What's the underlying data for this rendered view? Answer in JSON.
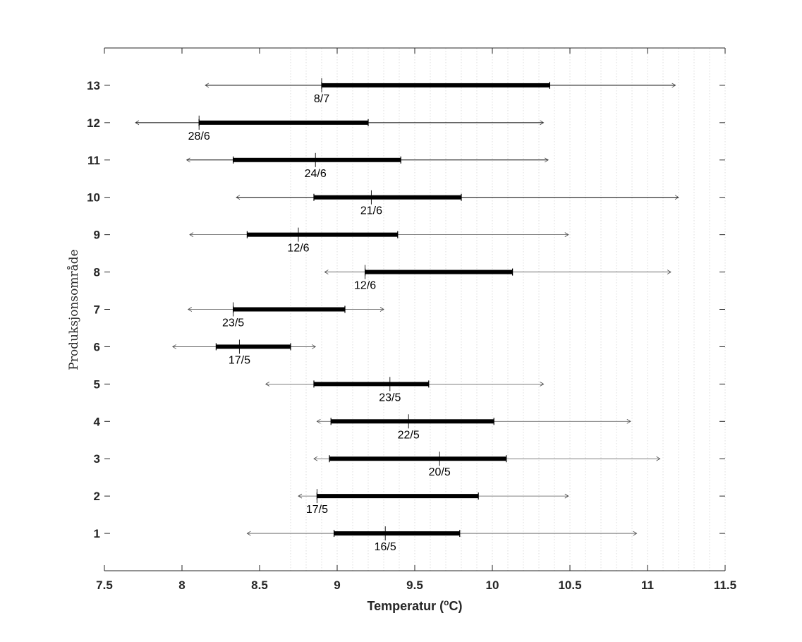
{
  "chart_data": {
    "type": "range",
    "xlabel": "Temperatur (",
    "xlabel_sup": "o",
    "xlabel_end": "C)",
    "ylabel": "Produksjonsområde",
    "xlim": [
      7.5,
      11.5
    ],
    "ylim": [
      0,
      14
    ],
    "xticks": [
      "7.5",
      "8",
      "8.5",
      "9",
      "9.5",
      "10",
      "10.5",
      "11",
      "11.5"
    ],
    "grid": "vertical dotted, minor, from 8.7 to 11.5",
    "series": [
      {
        "area": 13,
        "min": 8.15,
        "max": 11.18,
        "q_low": 8.9,
        "q_high": 10.37,
        "mark": 8.9,
        "date": "8/7"
      },
      {
        "area": 12,
        "min": 7.7,
        "max": 10.33,
        "q_low": 8.11,
        "q_high": 9.2,
        "mark": 8.11,
        "date": "28/6"
      },
      {
        "area": 11,
        "min": 8.03,
        "max": 10.36,
        "q_low": 8.33,
        "q_high": 9.41,
        "mark": 8.86,
        "date": "24/6"
      },
      {
        "area": 10,
        "min": 8.35,
        "max": 11.2,
        "q_low": 8.85,
        "q_high": 9.8,
        "mark": 9.22,
        "date": "21/6"
      },
      {
        "area": 9,
        "min": 8.05,
        "max": 10.49,
        "q_low": 8.42,
        "q_high": 9.39,
        "mark": 8.75,
        "date": "12/6"
      },
      {
        "area": 8,
        "min": 8.92,
        "max": 11.15,
        "q_low": 9.18,
        "q_high": 10.13,
        "mark": 9.18,
        "date": "12/6"
      },
      {
        "area": 7,
        "min": 8.04,
        "max": 9.3,
        "q_low": 8.33,
        "q_high": 9.05,
        "mark": 8.33,
        "date": "23/5"
      },
      {
        "area": 6,
        "min": 7.94,
        "max": 8.86,
        "q_low": 8.22,
        "q_high": 8.7,
        "mark": 8.37,
        "date": "17/5"
      },
      {
        "area": 5,
        "min": 8.54,
        "max": 10.33,
        "q_low": 8.85,
        "q_high": 9.59,
        "mark": 9.34,
        "date": "23/5"
      },
      {
        "area": 4,
        "min": 8.87,
        "max": 10.89,
        "q_low": 8.96,
        "q_high": 10.01,
        "mark": 9.46,
        "date": "22/5"
      },
      {
        "area": 3,
        "min": 8.85,
        "max": 11.08,
        "q_low": 8.95,
        "q_high": 10.09,
        "mark": 9.66,
        "date": "20/5"
      },
      {
        "area": 2,
        "min": 8.75,
        "max": 10.49,
        "q_low": 8.87,
        "q_high": 9.91,
        "mark": 8.87,
        "date": "17/5"
      },
      {
        "area": 1,
        "min": 8.42,
        "max": 10.93,
        "q_low": 8.98,
        "q_high": 9.79,
        "mark": 9.31,
        "date": "16/5"
      }
    ]
  }
}
